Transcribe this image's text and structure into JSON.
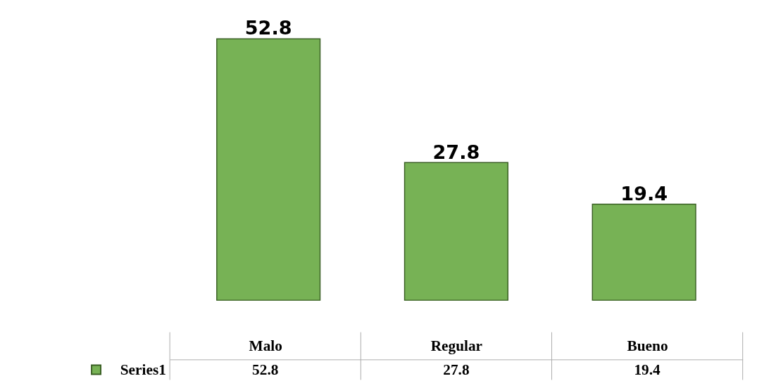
{
  "chart_data": [
    {
      "type": "bar",
      "categories": [
        null,
        null,
        null
      ],
      "series": [
        {
          "color": "#77b255",
          "values": [
            52.8,
            27.8,
            19.4
          ],
          "value_labels": [
            "52.8",
            "27.8",
            "19.4"
          ]
        }
      ]
    },
    {
      "type": "other",
      "categories": [
        "Malo",
        "Regular",
        "Bueno"
      ],
      "series": [
        {
          "name": "Series1",
          "color": "#77b255",
          "values": [
            52.8,
            27.8,
            19.4
          ]
        }
      ],
      "data_labels": true
    }
  ]
}
